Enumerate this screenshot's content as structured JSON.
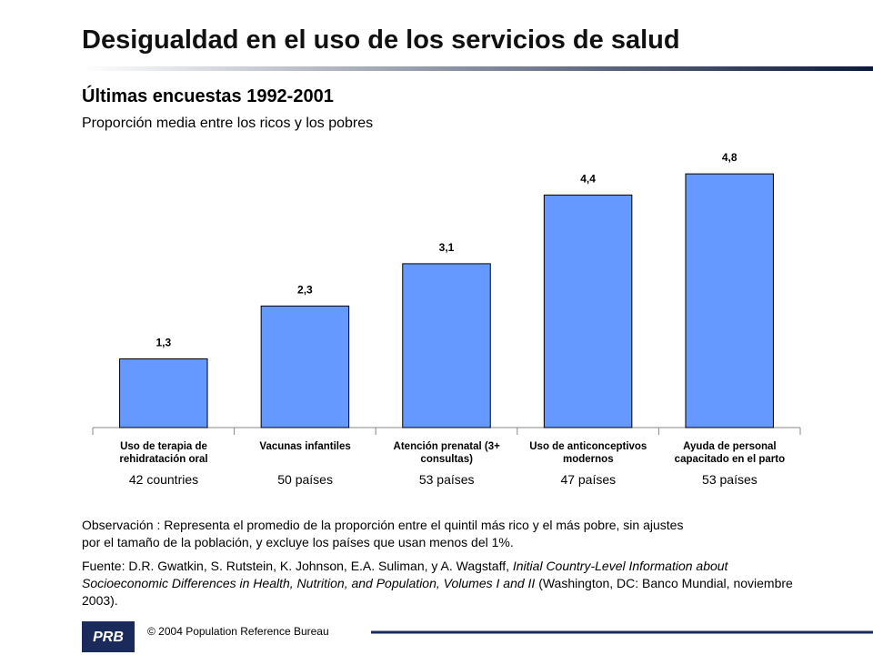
{
  "chart_data": {
    "type": "bar",
    "title": "Desigualdad en el uso de los servicios de salud",
    "subtitle": "Últimas encuestas 1992-2001",
    "subtitle2": "Proporción media entre los ricos y los pobres",
    "categories": [
      "Uso de terapia de\nrehidratación oral",
      "Vacunas infantiles",
      "Atención prenatal (3+\nconsultas)",
      "Uso de anticonceptivos\nmodernos",
      "Ayuda de personal\ncapacitado en el parto"
    ],
    "values": [
      1.3,
      2.3,
      3.1,
      4.4,
      4.8
    ],
    "value_labels": [
      "1,3",
      "2,3",
      "3,1",
      "4,4",
      "4,8"
    ],
    "sample_labels": [
      "42 countries",
      "50 países",
      "53 países",
      "47 países",
      "53 países"
    ],
    "color": "#6699ff",
    "note": "Observación : Representa el promedio de la proporción entre el quintil más rico y el más pobre, sin ajustes\npor el tamaño de la población, y excluye los países que usan menos del 1%.",
    "source": [
      "Fuente: D.R. Gwatkin, S. Rutstein, K. Johnson, E.A. Suliman, y A. Wagstaff, ",
      "Initial Country-Level Information about Socioeconomic Differences in Health, Nutrition, and Population, Volumes I and II",
      " (Washington, DC: Banco Mundial, noviembre 2003)."
    ],
    "footer": "© 2004 Population Reference Bureau"
  }
}
